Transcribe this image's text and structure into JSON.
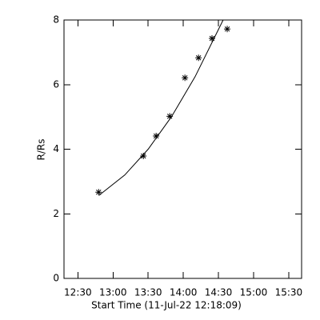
{
  "chart_data": {
    "type": "scatter",
    "x_label": "Start Time (11-Jul-22 12:18:09)",
    "y_label": "R/Rs",
    "xlim": [
      738.15,
      941
    ],
    "ylim": [
      0,
      8
    ],
    "xticks": [
      {
        "value": 750,
        "label": "12:30"
      },
      {
        "value": 780,
        "label": "13:00"
      },
      {
        "value": 810,
        "label": "13:30"
      },
      {
        "value": 840,
        "label": "14:00"
      },
      {
        "value": 870,
        "label": "14:30"
      },
      {
        "value": 900,
        "label": "15:00"
      },
      {
        "value": 930,
        "label": "15:30"
      }
    ],
    "yticks": [
      0,
      2,
      4,
      6,
      8
    ],
    "series": [
      {
        "color": "#000000",
        "marker": "asterisk",
        "x": [
          767.7,
          805.9,
          816.8,
          828.4,
          841.4,
          853,
          864.5,
          877.5
        ],
        "values": [
          2.67,
          3.79,
          4.41,
          5.02,
          6.21,
          6.83,
          7.43,
          7.72
        ]
      },
      {
        "color": "#000000",
        "marker": "line",
        "x": [
          768,
          790,
          810,
          830,
          850,
          874
        ],
        "values": [
          2.57,
          3.2,
          4.0,
          5.01,
          6.24,
          8.0
        ]
      }
    ]
  }
}
